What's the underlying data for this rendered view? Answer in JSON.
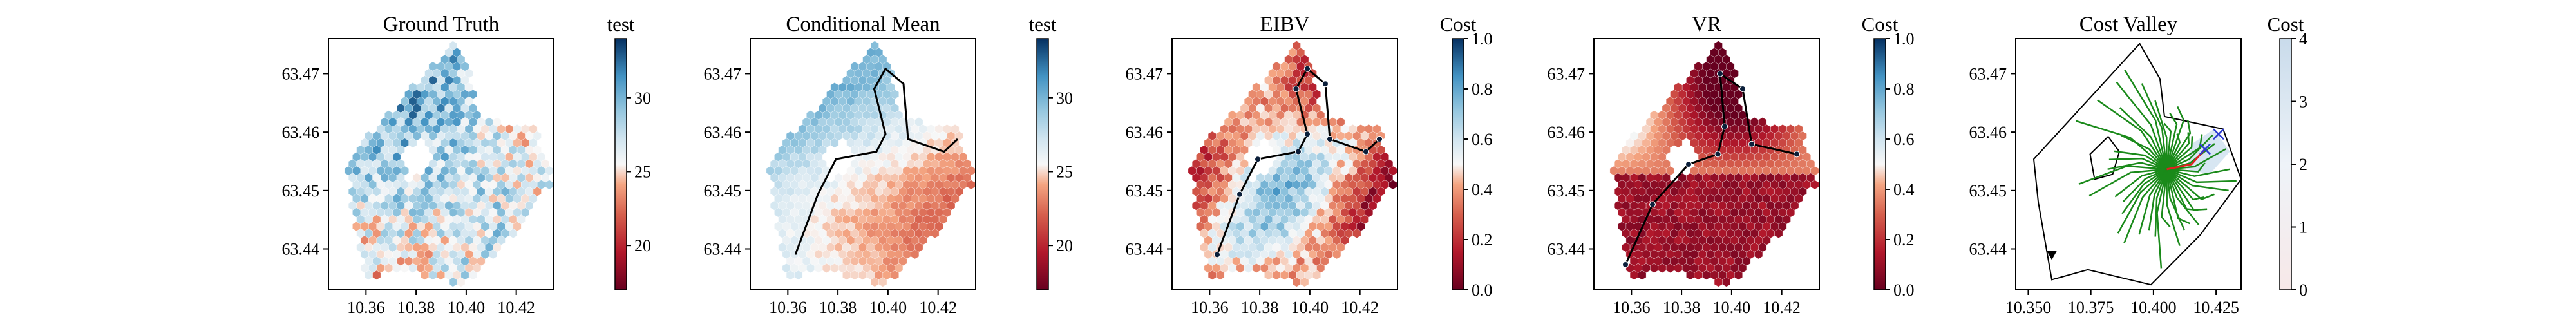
{
  "figure": {
    "panels": [
      {
        "title": "Ground Truth",
        "cbar_title": "test",
        "cbar_ticks": [
          "20",
          "25",
          "30"
        ]
      },
      {
        "title": "Conditional Mean",
        "cbar_title": "test",
        "cbar_ticks": [
          "20",
          "25",
          "30"
        ]
      },
      {
        "title": "EIBV",
        "cbar_title": "Cost",
        "cbar_ticks": [
          "0.0",
          "0.2",
          "0.4",
          "0.6",
          "0.8",
          "1.0"
        ]
      },
      {
        "title": "VR",
        "cbar_title": "Cost",
        "cbar_ticks": [
          "0.0",
          "0.2",
          "0.4",
          "0.6",
          "0.8",
          "1.0"
        ]
      },
      {
        "title": "Cost Valley",
        "cbar_title": "Cost",
        "cbar_ticks": [
          "0",
          "1",
          "2",
          "3",
          "4"
        ]
      }
    ]
  },
  "chart_data": [
    {
      "type": "heatmap",
      "title": "Ground Truth",
      "x_ticks": [
        "10.36",
        "10.38",
        "10.40",
        "10.42"
      ],
      "y_ticks": [
        "63.44",
        "63.45",
        "63.46",
        "63.47"
      ],
      "xlim": [
        10.345,
        10.435
      ],
      "ylim": [
        63.433,
        63.476
      ],
      "colorbar": {
        "label": "test",
        "range": [
          17,
          34
        ],
        "ticks": [
          20,
          25,
          30
        ],
        "colormap": "RdBu"
      },
      "grid": false
    },
    {
      "type": "heatmap",
      "title": "Conditional Mean",
      "x_ticks": [
        "10.36",
        "10.38",
        "10.40",
        "10.42"
      ],
      "y_ticks": [
        "63.44",
        "63.45",
        "63.46",
        "63.47"
      ],
      "xlim": [
        10.345,
        10.435
      ],
      "ylim": [
        63.433,
        63.476
      ],
      "colorbar": {
        "label": "test",
        "range": [
          17,
          34
        ],
        "ticks": [
          20,
          25,
          30
        ],
        "colormap": "RdBu"
      },
      "path_overlay": true,
      "grid": false
    },
    {
      "type": "heatmap",
      "title": "EIBV",
      "x_ticks": [
        "10.36",
        "10.38",
        "10.40",
        "10.42"
      ],
      "y_ticks": [
        "63.44",
        "63.45",
        "63.46",
        "63.47"
      ],
      "xlim": [
        10.345,
        10.435
      ],
      "ylim": [
        63.433,
        63.476
      ],
      "colorbar": {
        "label": "Cost",
        "range": [
          0,
          1
        ],
        "ticks": [
          0,
          0.2,
          0.4,
          0.6,
          0.8,
          1.0
        ],
        "colormap": "RdBu"
      },
      "path_overlay": true,
      "grid": false
    },
    {
      "type": "heatmap",
      "title": "VR",
      "x_ticks": [
        "10.36",
        "10.38",
        "10.40",
        "10.42"
      ],
      "y_ticks": [
        "63.44",
        "63.45",
        "63.46",
        "63.47"
      ],
      "xlim": [
        10.345,
        10.435
      ],
      "ylim": [
        63.433,
        63.476
      ],
      "colorbar": {
        "label": "Cost",
        "range": [
          0,
          1
        ],
        "ticks": [
          0,
          0.2,
          0.4,
          0.6,
          0.8,
          1.0
        ],
        "colormap": "RdBu"
      },
      "path_overlay": true,
      "grid": false
    },
    {
      "type": "heatmap",
      "title": "Cost Valley",
      "x_ticks": [
        "10.350",
        "10.375",
        "10.400",
        "10.425"
      ],
      "y_ticks": [
        "63.44",
        "63.45",
        "63.46",
        "63.47"
      ],
      "xlim": [
        10.345,
        10.435
      ],
      "ylim": [
        63.433,
        63.476
      ],
      "colorbar": {
        "label": "Cost",
        "range": [
          0,
          4
        ],
        "ticks": [
          0,
          1,
          2,
          3,
          4
        ],
        "colormap": "white-to-blue"
      },
      "tree_color": "#1a8a1a",
      "path_color": "#e02020",
      "marker_color": "#2a3ad0",
      "grid": false
    }
  ]
}
